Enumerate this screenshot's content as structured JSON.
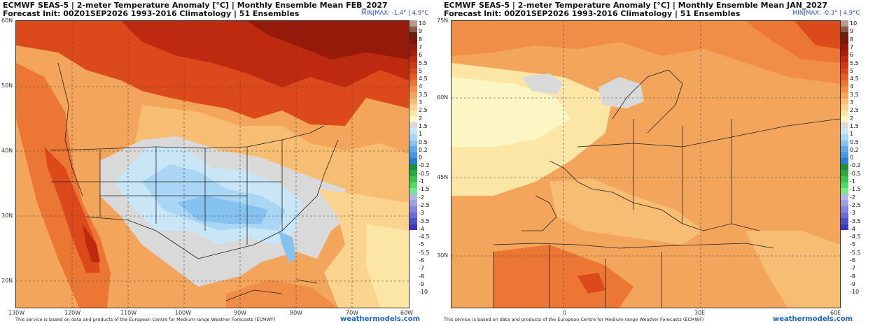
{
  "left": {
    "title_line1": "ECMWF SEAS-5 | 2-meter Temperature Anomaly [°C] | Monthly Ensemble Mean FEB_2027",
    "title_line2": "Forecast Init: 00Z01SEP2026     1993-2016 Climatology | 51 Ensembles",
    "minmax": "MIN|MAX: -1.4° | 4.9°C",
    "lat_labels": [
      "60N",
      "50N",
      "40N",
      "30N",
      "20N"
    ],
    "lon_labels": [
      "130W",
      "120W",
      "110W",
      "100W",
      "90W",
      "80W",
      "70W",
      "60W"
    ],
    "footer": "This service is based on data and products of the European Centre for Medium-range Weather Forecasts (ECMWF)",
    "brand": "weathermodels.com"
  },
  "right": {
    "title_line1": "ECMWF SEAS-5 | 2-meter Temperature Anomaly [°C] | Monthly Ensemble Mean JAN_2027",
    "title_line2": "Forecast Init: 00Z01SEP2026     1993-2016 Climatology | 51 Ensembles",
    "minmax": "MIN|MAX: -0.3° | 4.9°C",
    "lat_labels": [
      "75N",
      "60N",
      "45N",
      "30N"
    ],
    "lon_labels": [
      "0",
      "30E",
      "60E"
    ],
    "footer": "This service is based on data and products of the European Centre for Medium-range Weather Forecasts (ECMWF)",
    "brand": "weathermodels.com"
  },
  "colorbar": {
    "labels": [
      "10",
      "9",
      "8",
      "7",
      "6",
      "5.5",
      "5",
      "4.5",
      "4",
      "3.5",
      "3",
      "2.5",
      "2",
      "1.5",
      "1",
      "0.5",
      "0.2",
      "0",
      "-0.2",
      "-0.5",
      "-1",
      "-1.5",
      "-2",
      "-2.5",
      "-3",
      "-3.5",
      "-4",
      "-4.5",
      "-5",
      "-5.5",
      "-6",
      "-7",
      "-8",
      "-9",
      "-10"
    ],
    "colors": [
      "#b89a8e",
      "#8c5a4b",
      "#6e1f10",
      "#7f1508",
      "#951a0a",
      "#a8200c",
      "#bd2a10",
      "#cf3a16",
      "#dc4a1c",
      "#e45e25",
      "#ec7634",
      "#f08e47",
      "#f4a55c",
      "#f7bd73",
      "#fad38e",
      "#fbe6a6",
      "#fcf5c4",
      "#d9d9d9",
      "#c9e6f7",
      "#a9d6f5",
      "#86c2ef",
      "#63abe7",
      "#4496dd",
      "#2e7fd2",
      "#1f8f3d",
      "#2aa844",
      "#3dc24e",
      "#55d865",
      "#79e88c",
      "#b5b5ea",
      "#9f9fe4",
      "#8585dc",
      "#6b6bd2",
      "#5151c6",
      "#3a3ab8"
    ]
  }
}
